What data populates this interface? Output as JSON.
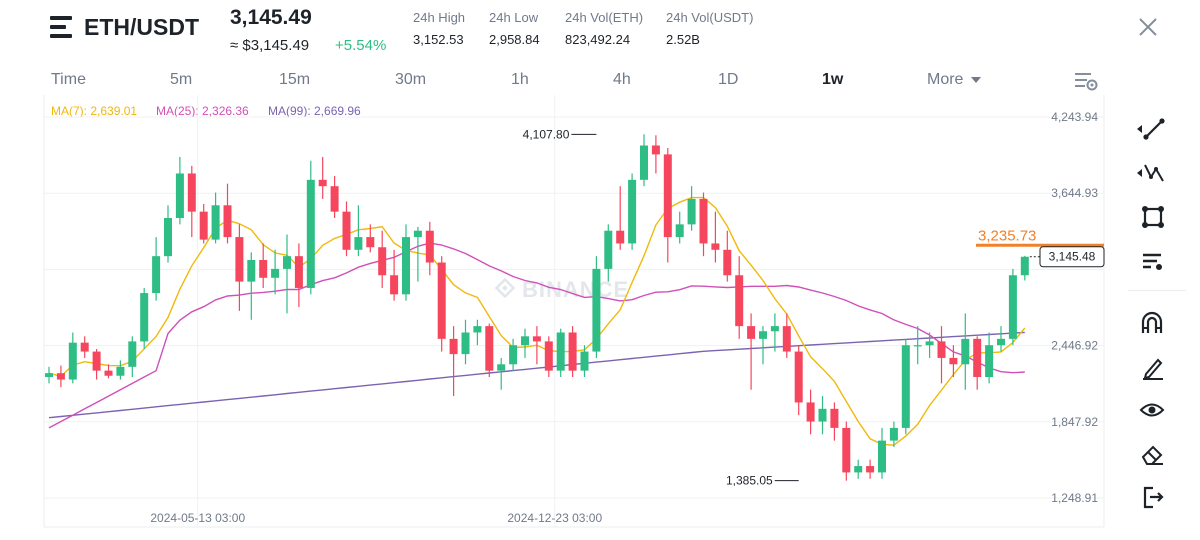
{
  "header": {
    "pair": "ETH/USDT",
    "price": "3,145.49",
    "approx_price": "≈ $3,145.49",
    "change_pct": "+5.54%",
    "stats": [
      {
        "label": "24h High",
        "value": "3,152.53"
      },
      {
        "label": "24h Low",
        "value": "2,958.84"
      },
      {
        "label": "24h Vol(ETH)",
        "value": "823,492.24"
      },
      {
        "label": "24h Vol(USDT)",
        "value": "2.52B"
      }
    ]
  },
  "timeframes": [
    "Time",
    "5m",
    "15m",
    "30m",
    "1h",
    "4h",
    "1D",
    "1w",
    "More"
  ],
  "active_timeframe": "1w",
  "moving_averages": [
    {
      "label": "MA(7): 2,639.01",
      "color": "#f0b90b"
    },
    {
      "label": "MA(25): 2,326.36",
      "color": "#d050b8"
    },
    {
      "label": "MA(99): 2,669.96",
      "color": "#7a64b0"
    }
  ],
  "colors": {
    "up": "#2ebd85",
    "down": "#f6465d",
    "alert": "#f0802a",
    "brand": "#1e2329"
  },
  "watermark": "BINANCE",
  "toolbar_icons": [
    "trend-line-icon",
    "fib-tools-icon",
    "shapes-icon",
    "text-tools-icon",
    "magnet-icon",
    "pencil-icon",
    "eye-icon",
    "eraser-icon",
    "exit-icon"
  ],
  "chart_data": {
    "type": "candlestick",
    "interval": "1w",
    "y_ticks": [
      4243.94,
      3644.93,
      3045.93,
      2446.92,
      1847.92,
      1248.91
    ],
    "y_tick_labels": [
      "4,243.94",
      "3,644.93",
      "",
      "2,446.92",
      "1,847.92",
      "1,248.91"
    ],
    "ylim": [
      1200,
      4300
    ],
    "x_tick_labels": [
      {
        "index": 12.5,
        "label": "2024-05-13 03:00"
      },
      {
        "index": 42.5,
        "label": "2024-12-23 03:00"
      }
    ],
    "high_marker": {
      "index": 46,
      "value": 4107.8,
      "label": "4,107.80"
    },
    "low_marker": {
      "index": 63,
      "value": 1385.05,
      "label": "1,385.05"
    },
    "current_price": {
      "value": 3145.48,
      "label": "3,145.48"
    },
    "alert_line": {
      "value": 3235.73,
      "label": "3,235.73"
    },
    "candles": [
      [
        2200,
        2230,
        2280,
        2150
      ],
      [
        2230,
        2180,
        2290,
        2120
      ],
      [
        2180,
        2470,
        2550,
        2150
      ],
      [
        2470,
        2400,
        2520,
        2350
      ],
      [
        2400,
        2250,
        2420,
        2180
      ],
      [
        2250,
        2210,
        2300,
        2190
      ],
      [
        2210,
        2280,
        2330,
        2180
      ],
      [
        2280,
        2480,
        2520,
        2200
      ],
      [
        2480,
        2860,
        2900,
        2420
      ],
      [
        2860,
        3150,
        3300,
        2800
      ],
      [
        3150,
        3450,
        3550,
        3100
      ],
      [
        3450,
        3800,
        3930,
        3400
      ],
      [
        3800,
        3500,
        3860,
        3300
      ],
      [
        3500,
        3280,
        3560,
        3250
      ],
      [
        3280,
        3550,
        3650,
        3250
      ],
      [
        3550,
        3300,
        3720,
        3250
      ],
      [
        3300,
        2950,
        3400,
        2720
      ],
      [
        2950,
        3120,
        3180,
        2650
      ],
      [
        3120,
        2980,
        3250,
        2900
      ],
      [
        2980,
        3050,
        3200,
        2850
      ],
      [
        3050,
        3150,
        3320,
        2700
      ],
      [
        3150,
        2900,
        3250,
        2750
      ],
      [
        2900,
        3750,
        3900,
        2850
      ],
      [
        3750,
        3700,
        3930,
        3600
      ],
      [
        3700,
        3500,
        3780,
        3450
      ],
      [
        3500,
        3200,
        3580,
        3150
      ],
      [
        3200,
        3300,
        3550,
        3150
      ],
      [
        3300,
        3220,
        3400,
        3180
      ],
      [
        3220,
        3000,
        3350,
        2900
      ],
      [
        3000,
        2850,
        3200,
        2800
      ],
      [
        2850,
        3300,
        3400,
        2800
      ],
      [
        3300,
        3350,
        3380,
        2950
      ],
      [
        3350,
        3100,
        3420,
        3000
      ],
      [
        3100,
        2500,
        3150,
        2400
      ],
      [
        2500,
        2380,
        2600,
        2050
      ],
      [
        2380,
        2550,
        2650,
        2300
      ],
      [
        2550,
        2600,
        2650,
        2450
      ],
      [
        2600,
        2250,
        2620,
        2200
      ],
      [
        2250,
        2300,
        2350,
        2100
      ],
      [
        2300,
        2450,
        2500,
        2250
      ],
      [
        2450,
        2520,
        2580,
        2350
      ],
      [
        2520,
        2480,
        2600,
        2300
      ],
      [
        2480,
        2250,
        2520,
        2200
      ],
      [
        2250,
        2550,
        2580,
        2200
      ],
      [
        2550,
        2250,
        2600,
        2200
      ],
      [
        2250,
        2400,
        2450,
        2200
      ],
      [
        2400,
        3050,
        3150,
        2350
      ],
      [
        3050,
        3350,
        3400,
        2950
      ],
      [
        3350,
        3250,
        3700,
        3200
      ],
      [
        3250,
        3750,
        3800,
        3200
      ],
      [
        3750,
        4020,
        4107.8,
        3700
      ],
      [
        4020,
        3950,
        4100,
        3800
      ],
      [
        3950,
        3300,
        4000,
        3100
      ],
      [
        3300,
        3400,
        3500,
        3250
      ],
      [
        3400,
        3600,
        3700,
        3350
      ],
      [
        3600,
        3250,
        3650,
        3150
      ],
      [
        3250,
        3200,
        3500,
        3100
      ],
      [
        3200,
        3000,
        3350,
        2950
      ],
      [
        3000,
        2600,
        3150,
        2500
      ],
      [
        2600,
        2500,
        2700,
        2100
      ],
      [
        2500,
        2560,
        2600,
        2300
      ],
      [
        2560,
        2600,
        2700,
        2400
      ],
      [
        2600,
        2400,
        2700,
        2350
      ],
      [
        2400,
        2000,
        2450,
        1900
      ],
      [
        2000,
        1850,
        2100,
        1750
      ],
      [
        1850,
        1950,
        2050,
        1750
      ],
      [
        1950,
        1800,
        2000,
        1700
      ],
      [
        1800,
        1450,
        1850,
        1385.05
      ],
      [
        1450,
        1500,
        1550,
        1400
      ],
      [
        1500,
        1450,
        1550,
        1400
      ],
      [
        1450,
        1700,
        1800,
        1400
      ],
      [
        1700,
        1800,
        1850,
        1650
      ],
      [
        1800,
        2450,
        2500,
        1750
      ],
      [
        2450,
        2450,
        2600,
        2300
      ],
      [
        2450,
        2480,
        2550,
        2350
      ],
      [
        2480,
        2350,
        2600,
        2150
      ],
      [
        2350,
        2300,
        2450,
        2200
      ],
      [
        2300,
        2500,
        2700,
        2100
      ],
      [
        2500,
        2200,
        2520,
        2100
      ],
      [
        2200,
        2450,
        2550,
        2150
      ],
      [
        2450,
        2500,
        2600,
        2400
      ],
      [
        2500,
        3000,
        3050,
        2450
      ],
      [
        3000,
        3145.48,
        3152.53,
        2958.84
      ]
    ]
  }
}
